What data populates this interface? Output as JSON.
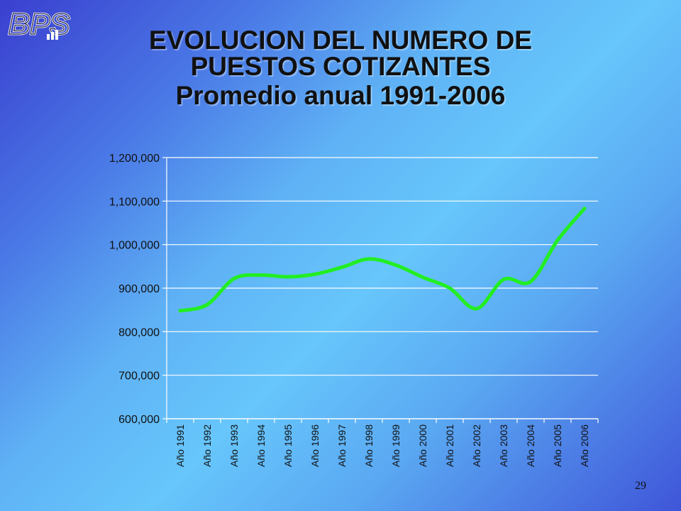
{
  "slide": {
    "logo_text": "BPS",
    "title_line1": "EVOLUCION DEL NUMERO DE",
    "title_line2": "PUESTOS COTIZANTES",
    "title_line3": "Promedio anual 1991-2006",
    "page_number": "29"
  },
  "colors": {
    "line": "#22ee22",
    "axis": "#ffffff",
    "text": "#111111"
  },
  "chart_data": {
    "type": "line",
    "title": "",
    "xlabel": "",
    "ylabel": "",
    "ylim": [
      600000,
      1200000
    ],
    "yticks": [
      600000,
      700000,
      800000,
      900000,
      1000000,
      1100000,
      1200000
    ],
    "ytick_labels": [
      "600,000",
      "700,000",
      "800,000",
      "900,000",
      "1,000,000",
      "1,100,000",
      "1,200,000"
    ],
    "grid": true,
    "categories": [
      "Año 1991",
      "Año 1992",
      "Año 1993",
      "Año 1994",
      "Año 1995",
      "Año 1996",
      "Año 1997",
      "Año 1998",
      "Año 1999",
      "Año 2000",
      "Año 2001",
      "Año 2002",
      "Año 2003",
      "Año 2004",
      "Año 2005",
      "Año 2006"
    ],
    "series": [
      {
        "values": [
          848000,
          862000,
          922000,
          930000,
          926000,
          932000,
          948000,
          967000,
          953000,
          925000,
          900000,
          853000,
          920000,
          915000,
          1010000,
          1083000
        ]
      }
    ]
  }
}
